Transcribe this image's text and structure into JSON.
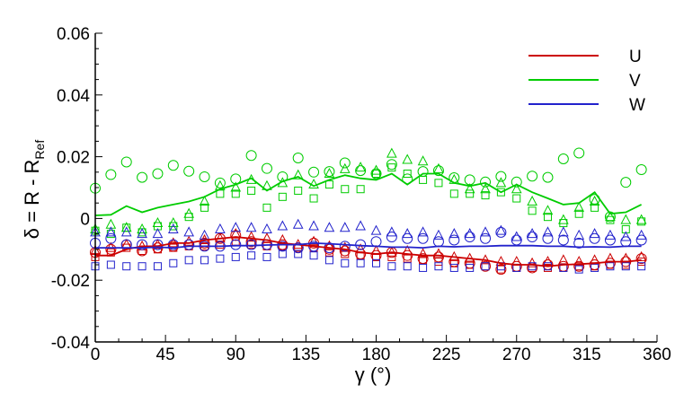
{
  "chart_data": {
    "type": "scatter",
    "xlabel": "γ (°)",
    "ylabel": "δ = R - R_Ref",
    "ylabel_parts": {
      "main": "δ = R - R",
      "subscript": "Ref"
    },
    "xlim": [
      0,
      360
    ],
    "ylim": [
      -0.04,
      0.06
    ],
    "x_ticks": [
      0,
      45,
      90,
      135,
      180,
      225,
      270,
      315,
      360
    ],
    "x_tick_labels": [
      "0",
      "45",
      "90",
      "135",
      "180",
      "225",
      "270",
      "315",
      "360"
    ],
    "y_ticks": [
      -0.04,
      -0.02,
      0,
      0.02,
      0.04,
      0.06
    ],
    "y_tick_labels": [
      "-0.04",
      "-0.02",
      "0",
      "0.02",
      "0.04",
      "0.06"
    ],
    "grid": false,
    "legend_position": "top-right",
    "line_series": [
      {
        "name": "U",
        "color": "#cc0000",
        "x": [
          0,
          10,
          20,
          30,
          40,
          50,
          60,
          70,
          80,
          90,
          100,
          110,
          120,
          130,
          140,
          150,
          160,
          170,
          180,
          190,
          200,
          210,
          220,
          230,
          240,
          250,
          260,
          270,
          280,
          290,
          300,
          310,
          320,
          330,
          340,
          350
        ],
        "y": [
          -0.012,
          -0.012,
          -0.01,
          -0.009,
          -0.009,
          -0.008,
          -0.008,
          -0.007,
          -0.0065,
          -0.006,
          -0.0065,
          -0.007,
          -0.008,
          -0.0085,
          -0.009,
          -0.0095,
          -0.01,
          -0.011,
          -0.0115,
          -0.011,
          -0.0115,
          -0.012,
          -0.012,
          -0.0125,
          -0.013,
          -0.0135,
          -0.0145,
          -0.015,
          -0.015,
          -0.0155,
          -0.015,
          -0.0148,
          -0.0145,
          -0.014,
          -0.014,
          -0.0135
        ]
      },
      {
        "name": "V",
        "color": "#00cc00",
        "x": [
          0,
          10,
          20,
          30,
          40,
          50,
          60,
          70,
          80,
          90,
          100,
          110,
          120,
          130,
          140,
          150,
          160,
          170,
          180,
          190,
          200,
          210,
          220,
          230,
          240,
          250,
          260,
          270,
          280,
          290,
          300,
          310,
          320,
          330,
          340,
          350
        ],
        "y": [
          0.001,
          0.0012,
          0.004,
          0.002,
          0.0035,
          0.0045,
          0.0055,
          0.007,
          0.0095,
          0.011,
          0.013,
          0.009,
          0.012,
          0.0135,
          0.0105,
          0.0125,
          0.014,
          0.013,
          0.0125,
          0.0145,
          0.011,
          0.0145,
          0.0145,
          0.0115,
          0.0105,
          0.0115,
          0.0085,
          0.011,
          0.0085,
          0.0065,
          0.0045,
          0.005,
          0.0085,
          0.0015,
          0.002,
          0.0045
        ]
      },
      {
        "name": "W",
        "color": "#2222cc",
        "x": [
          0,
          10,
          20,
          30,
          40,
          50,
          60,
          70,
          80,
          90,
          100,
          110,
          120,
          130,
          140,
          150,
          160,
          170,
          180,
          190,
          200,
          210,
          220,
          230,
          240,
          250,
          260,
          270,
          280,
          290,
          300,
          310,
          320,
          330,
          340,
          350
        ],
        "y": [
          -0.0095,
          -0.0095,
          -0.0095,
          -0.0095,
          -0.0093,
          -0.0095,
          -0.009,
          -0.009,
          -0.009,
          -0.0088,
          -0.0088,
          -0.0086,
          -0.0085,
          -0.0085,
          -0.008,
          -0.0082,
          -0.0085,
          -0.0088,
          -0.009,
          -0.0093,
          -0.0093,
          -0.0095,
          -0.009,
          -0.0092,
          -0.009,
          -0.009,
          -0.0088,
          -0.0088,
          -0.0088,
          -0.009,
          -0.009,
          -0.0093,
          -0.0092,
          -0.0093,
          -0.009,
          -0.009
        ]
      }
    ],
    "marker_series": [
      {
        "marker": "circle",
        "color": "#cc0000",
        "x": [
          0,
          10,
          20,
          30,
          40,
          50,
          60,
          70,
          80,
          90,
          100,
          110,
          120,
          130,
          140,
          150,
          160,
          170,
          180,
          190,
          200,
          210,
          220,
          230,
          240,
          250,
          260,
          270,
          280,
          290,
          300,
          310,
          320,
          330,
          340,
          350
        ],
        "y": [
          -0.011,
          -0.01,
          -0.0085,
          -0.0105,
          -0.0095,
          -0.009,
          -0.0085,
          -0.008,
          -0.0065,
          -0.0055,
          -0.0075,
          -0.0085,
          -0.0085,
          -0.0095,
          -0.008,
          -0.01,
          -0.0105,
          -0.0115,
          -0.012,
          -0.011,
          -0.012,
          -0.013,
          -0.0125,
          -0.014,
          -0.0145,
          -0.0155,
          -0.0165,
          -0.0155,
          -0.016,
          -0.015,
          -0.0155,
          -0.0155,
          -0.015,
          -0.0145,
          -0.014,
          -0.013
        ]
      },
      {
        "marker": "triangle",
        "color": "#cc0000",
        "x": [
          0,
          10,
          20,
          30,
          40,
          50,
          60,
          70,
          80,
          90,
          100,
          110,
          120,
          130,
          140,
          150,
          160,
          170,
          180,
          190,
          200,
          210,
          220,
          230,
          240,
          250,
          260,
          270,
          280,
          290,
          300,
          310,
          320,
          330,
          340,
          350
        ],
        "y": [
          -0.0105,
          -0.0095,
          -0.0085,
          -0.009,
          -0.0085,
          -0.008,
          -0.0075,
          -0.007,
          -0.0065,
          -0.005,
          -0.006,
          -0.0065,
          -0.007,
          -0.0085,
          -0.0075,
          -0.009,
          -0.0095,
          -0.01,
          -0.0105,
          -0.011,
          -0.0105,
          -0.0115,
          -0.0115,
          -0.0125,
          -0.013,
          -0.0135,
          -0.014,
          -0.014,
          -0.0145,
          -0.014,
          -0.0135,
          -0.014,
          -0.0135,
          -0.013,
          -0.013,
          -0.0125
        ]
      },
      {
        "marker": "square",
        "color": "#cc0000",
        "x": [
          0,
          10,
          20,
          30,
          40,
          50,
          60,
          70,
          80,
          90,
          100,
          110,
          120,
          130,
          140,
          150,
          160,
          170,
          180,
          190,
          200,
          210,
          220,
          230,
          240,
          250,
          260,
          270,
          280,
          290,
          300,
          310,
          320,
          330,
          340,
          350
        ],
        "y": [
          -0.0125,
          -0.011,
          -0.0095,
          -0.0105,
          -0.01,
          -0.0095,
          -0.009,
          -0.009,
          -0.0085,
          -0.0075,
          -0.0085,
          -0.009,
          -0.009,
          -0.0095,
          -0.0095,
          -0.011,
          -0.0115,
          -0.012,
          -0.0125,
          -0.0125,
          -0.013,
          -0.0135,
          -0.014,
          -0.0145,
          -0.015,
          -0.0155,
          -0.0165,
          -0.016,
          -0.016,
          -0.016,
          -0.016,
          -0.0155,
          -0.0155,
          -0.015,
          -0.015,
          -0.014
        ]
      },
      {
        "marker": "circle",
        "color": "#00cc00",
        "x": [
          0,
          10,
          20,
          30,
          40,
          50,
          60,
          70,
          80,
          90,
          100,
          110,
          120,
          130,
          140,
          150,
          160,
          170,
          180,
          190,
          200,
          210,
          220,
          230,
          240,
          250,
          260,
          270,
          280,
          290,
          300,
          310,
          320,
          330,
          340,
          350
        ],
        "y": [
          0.0098,
          0.0142,
          0.0183,
          0.0133,
          0.0145,
          0.0172,
          0.0153,
          0.0135,
          0.0115,
          0.0128,
          0.0204,
          0.0162,
          0.0135,
          0.0196,
          0.015,
          0.0152,
          0.018,
          0.0155,
          0.0145,
          0.0175,
          0.0128,
          0.0152,
          0.0155,
          0.0132,
          0.0125,
          0.0118,
          0.0136,
          0.0118,
          0.0137,
          0.0133,
          0.0193,
          0.0212,
          0.0062,
          0.0005,
          0.0117,
          0.0158
        ]
      },
      {
        "marker": "triangle",
        "color": "#00cc00",
        "x": [
          0,
          10,
          20,
          30,
          40,
          50,
          60,
          70,
          80,
          90,
          100,
          110,
          120,
          130,
          140,
          150,
          160,
          170,
          180,
          190,
          200,
          210,
          220,
          230,
          240,
          250,
          260,
          270,
          280,
          290,
          300,
          310,
          320,
          330,
          340,
          350
        ],
        "y": [
          -0.0035,
          -0.002,
          -0.003,
          -0.0035,
          -0.0015,
          -0.0015,
          0.0015,
          0.0055,
          0.0105,
          0.01,
          0.0125,
          0.0105,
          0.0115,
          0.014,
          0.011,
          0.0145,
          0.016,
          0.0165,
          0.0155,
          0.021,
          0.019,
          0.0185,
          0.016,
          0.0125,
          0.0095,
          0.0095,
          0.0115,
          0.0095,
          0.0055,
          0.0025,
          -0.0005,
          0.0035,
          0.0055,
          0.0005,
          -0.0005,
          -0.0005
        ]
      },
      {
        "marker": "square",
        "color": "#00cc00",
        "x": [
          0,
          10,
          20,
          30,
          40,
          50,
          60,
          70,
          80,
          90,
          100,
          110,
          120,
          130,
          140,
          150,
          160,
          170,
          180,
          190,
          200,
          210,
          220,
          230,
          240,
          250,
          260,
          270,
          280,
          290,
          300,
          310,
          320,
          330,
          340,
          350
        ],
        "y": [
          -0.004,
          -0.005,
          -0.003,
          -0.0045,
          -0.0025,
          -0.0025,
          0.0005,
          0.0035,
          0.008,
          0.008,
          0.009,
          0.0035,
          0.007,
          0.009,
          0.0065,
          0.011,
          0.0095,
          0.0095,
          0.0145,
          0.0165,
          0.0145,
          0.0125,
          0.0115,
          0.008,
          0.008,
          0.0075,
          0.0085,
          0.0065,
          0.0025,
          0.0005,
          -0.0015,
          0.0015,
          0.0035,
          -0.0005,
          -0.0035,
          -0.001
        ]
      },
      {
        "marker": "circle",
        "color": "#2222cc",
        "x": [
          0,
          10,
          20,
          30,
          40,
          50,
          60,
          70,
          80,
          90,
          100,
          110,
          120,
          130,
          140,
          150,
          160,
          170,
          180,
          190,
          200,
          210,
          220,
          230,
          240,
          250,
          260,
          270,
          280,
          290,
          300,
          310,
          320,
          330,
          340,
          350
        ],
        "y": [
          -0.008,
          -0.0065,
          -0.0085,
          -0.0085,
          -0.0085,
          -0.0085,
          -0.0085,
          -0.009,
          -0.009,
          -0.0085,
          -0.0085,
          -0.0085,
          -0.009,
          -0.0095,
          -0.009,
          -0.0095,
          -0.009,
          -0.0085,
          -0.0075,
          -0.006,
          -0.0065,
          -0.0065,
          -0.0075,
          -0.007,
          -0.006,
          -0.0065,
          -0.0045,
          -0.007,
          -0.006,
          -0.0065,
          -0.007,
          -0.008,
          -0.0065,
          -0.007,
          -0.0075,
          -0.007
        ]
      },
      {
        "marker": "triangle",
        "color": "#2222cc",
        "x": [
          0,
          10,
          20,
          30,
          40,
          50,
          60,
          70,
          80,
          90,
          100,
          110,
          120,
          130,
          140,
          150,
          160,
          170,
          180,
          190,
          200,
          210,
          220,
          230,
          240,
          250,
          260,
          270,
          280,
          290,
          300,
          310,
          320,
          330,
          340,
          350
        ],
        "y": [
          -0.0045,
          -0.0045,
          -0.0045,
          -0.005,
          -0.005,
          -0.0035,
          -0.0045,
          -0.0055,
          -0.0035,
          -0.003,
          -0.003,
          -0.0035,
          -0.0025,
          -0.002,
          -0.0025,
          -0.003,
          -0.003,
          -0.0025,
          -0.004,
          -0.0045,
          -0.005,
          -0.0045,
          -0.0055,
          -0.005,
          -0.005,
          -0.0045,
          -0.004,
          -0.006,
          -0.005,
          -0.0045,
          -0.0045,
          -0.0055,
          -0.005,
          -0.0055,
          -0.006,
          -0.0055
        ]
      },
      {
        "marker": "square",
        "color": "#2222cc",
        "x": [
          0,
          10,
          20,
          30,
          40,
          50,
          60,
          70,
          80,
          90,
          100,
          110,
          120,
          130,
          140,
          150,
          160,
          170,
          180,
          190,
          200,
          210,
          220,
          230,
          240,
          250,
          260,
          270,
          280,
          290,
          300,
          310,
          320,
          330,
          340,
          350
        ],
        "y": [
          -0.0155,
          -0.015,
          -0.0155,
          -0.0155,
          -0.0155,
          -0.0145,
          -0.0135,
          -0.0135,
          -0.013,
          -0.0125,
          -0.012,
          -0.0125,
          -0.0115,
          -0.0115,
          -0.012,
          -0.0135,
          -0.0145,
          -0.0145,
          -0.0145,
          -0.0155,
          -0.0155,
          -0.016,
          -0.0155,
          -0.016,
          -0.016,
          -0.0155,
          -0.0155,
          -0.016,
          -0.0155,
          -0.0155,
          -0.016,
          -0.0165,
          -0.016,
          -0.0155,
          -0.0155,
          -0.0155
        ]
      }
    ]
  }
}
